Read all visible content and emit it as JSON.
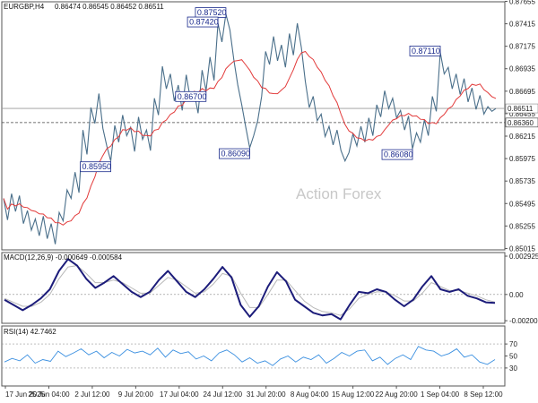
{
  "chart_data": [
    {
      "type": "candlestick",
      "title": "EURGBP,H4",
      "ohlc_label": "0.86474 0.86545 0.86452 0.86511",
      "watermark": "Action Forex",
      "ylim": [
        0.85,
        0.8765
      ],
      "y_ticks": [
        "0.87655",
        "0.87415",
        "0.87175",
        "0.86935",
        "0.86695",
        "0.86455",
        "0.86215",
        "0.85975",
        "0.85735",
        "0.85495",
        "0.85255",
        "0.85015"
      ],
      "x_ticks": [
        "17 Jun 2025",
        "25 Jun 04:00",
        "2 Jul 12:00",
        "9 Jul 20:00",
        "17 Jul 04:00",
        "24 Jul 12:00",
        "31 Jul 20:00",
        "8 Aug 04:00",
        "15 Aug 12:00",
        "22 Aug 20:00",
        "1 Sep 04:00",
        "8 Sep 12:00"
      ],
      "series_path": [
        0.8555,
        0.8532,
        0.856,
        0.8541,
        0.8558,
        0.8528,
        0.8542,
        0.8521,
        0.8533,
        0.8515,
        0.8536,
        0.8512,
        0.8528,
        0.8506,
        0.854,
        0.8531,
        0.8564,
        0.8555,
        0.8583,
        0.8561,
        0.8628,
        0.8602,
        0.8652,
        0.8635,
        0.8667,
        0.863,
        0.8611,
        0.8595,
        0.8633,
        0.8615,
        0.8644,
        0.8622,
        0.8631,
        0.8605,
        0.8642,
        0.8618,
        0.8628,
        0.8606,
        0.8662,
        0.8644,
        0.8696,
        0.8672,
        0.8688,
        0.8659,
        0.8676,
        0.8649,
        0.8687,
        0.8662,
        0.8668,
        0.8646,
        0.8692,
        0.867,
        0.8706,
        0.8681,
        0.8742,
        0.8722,
        0.8752,
        0.8735,
        0.8703,
        0.8676,
        0.8655,
        0.8631,
        0.8609,
        0.8622,
        0.8638,
        0.8664,
        0.8712,
        0.8698,
        0.8728,
        0.8702,
        0.8719,
        0.8695,
        0.8731,
        0.8708,
        0.8742,
        0.8716,
        0.868,
        0.8652,
        0.8664,
        0.8638,
        0.8645,
        0.8621,
        0.8632,
        0.8612,
        0.8628,
        0.8606,
        0.8595,
        0.8604,
        0.8624,
        0.8611,
        0.8632,
        0.8615,
        0.8641,
        0.8622,
        0.8655,
        0.8642,
        0.867,
        0.8651,
        0.8662,
        0.8641,
        0.8649,
        0.8628,
        0.8643,
        0.8608,
        0.8625,
        0.8615,
        0.8639,
        0.8622,
        0.8664,
        0.8648,
        0.8711,
        0.8688,
        0.8695,
        0.8672,
        0.8688,
        0.8666,
        0.8683,
        0.8658,
        0.8673,
        0.865,
        0.8665,
        0.8645,
        0.8653,
        0.8648,
        0.8651
      ],
      "reference_levels": [
        {
          "label": "0.86511",
          "value": 0.86511
        },
        {
          "label": "0.86360",
          "value": 0.8636
        }
      ],
      "annotations": [
        {
          "label": "0.87520",
          "value": 0.8752
        },
        {
          "label": "0.87420",
          "value": 0.8742
        },
        {
          "label": "0.87110",
          "value": 0.8711
        },
        {
          "label": "0.86700",
          "value": 0.867
        },
        {
          "label": "0.86090",
          "value": 0.8609
        },
        {
          "label": "0.85950",
          "value": 0.8595
        },
        {
          "label": "0.86080",
          "value": 0.8608
        }
      ],
      "colors": {
        "price": "#4a6f8a",
        "ma": "#e23a3a",
        "annotation": "#1a2a8c"
      }
    },
    {
      "type": "line",
      "title": "MACD(12,26,9) -0.000649 -0.000584",
      "ylim": [
        -0.0022,
        0.0032
      ],
      "y_ticks": [
        "0.002925",
        "0.00",
        "-0.002002"
      ],
      "series": [
        {
          "values": [
            -0.0004,
            -0.0008,
            -0.0012,
            -0.0008,
            -0.0003,
            0.0004,
            0.0018,
            0.0027,
            0.0022,
            0.0012,
            0.0005,
            0.0009,
            0.0014,
            0.0008,
            0.0002,
            -0.0002,
            0.0002,
            0.0011,
            0.0018,
            0.001,
            0.0002,
            -0.0002,
            0.0004,
            0.0012,
            0.0021,
            0.0013,
            -0.0008,
            -0.0017,
            -0.0009,
            0.0006,
            0.0017,
            0.001,
            -0.0004,
            -0.0009,
            -0.0014,
            -0.0016,
            -0.0015,
            -0.0019,
            -0.0008,
            0.0002,
            0.0001,
            0.0004,
            0.0002,
            -0.0004,
            -0.0009,
            -0.0004,
            0.0006,
            0.0014,
            0.0004,
            0.0002,
            0.0004,
            -0.0001,
            -0.0003,
            -0.0006,
            -0.00065
          ]
        },
        {
          "values": [
            -0.0003,
            -0.0006,
            -0.0009,
            -0.0009,
            -0.0006,
            0.0,
            0.0012,
            0.0021,
            0.0022,
            0.0016,
            0.0009,
            0.0009,
            0.0011,
            0.0009,
            0.0005,
            0.0001,
            0.0001,
            0.0007,
            0.0013,
            0.0011,
            0.0006,
            0.0001,
            0.0002,
            0.0008,
            0.0016,
            0.0014,
            0.0001,
            -0.001,
            -0.001,
            0.0,
            0.0011,
            0.0011,
            0.0003,
            -0.0005,
            -0.001,
            -0.0013,
            -0.0014,
            -0.0016,
            -0.0011,
            -0.0003,
            0.0,
            0.0002,
            0.0002,
            -0.0001,
            -0.0005,
            -0.0005,
            0.0001,
            0.0009,
            0.0006,
            0.0003,
            0.0003,
            0.0001,
            -0.0001,
            -0.0004,
            -0.00058
          ]
        }
      ]
    },
    {
      "type": "line",
      "title": "RSI(14) 42.7462",
      "ylim": [
        0,
        100
      ],
      "y_ticks": [
        "70",
        "50",
        "30"
      ],
      "levels": [
        70,
        30
      ],
      "series": [
        {
          "values": [
            40,
            46,
            42,
            52,
            38,
            44,
            41,
            58,
            49,
            55,
            62,
            52,
            58,
            47,
            56,
            50,
            61,
            55,
            58,
            52,
            63,
            48,
            60,
            54,
            57,
            45,
            50,
            42,
            55,
            60,
            52,
            40,
            47,
            38,
            42,
            34,
            45,
            50,
            40,
            48,
            44,
            52,
            38,
            46,
            56,
            50,
            58,
            60,
            42,
            48,
            36,
            46,
            52,
            44,
            66,
            60,
            58,
            50,
            54,
            62,
            48,
            52,
            40,
            36,
            44
          ]
        }
      ]
    }
  ]
}
